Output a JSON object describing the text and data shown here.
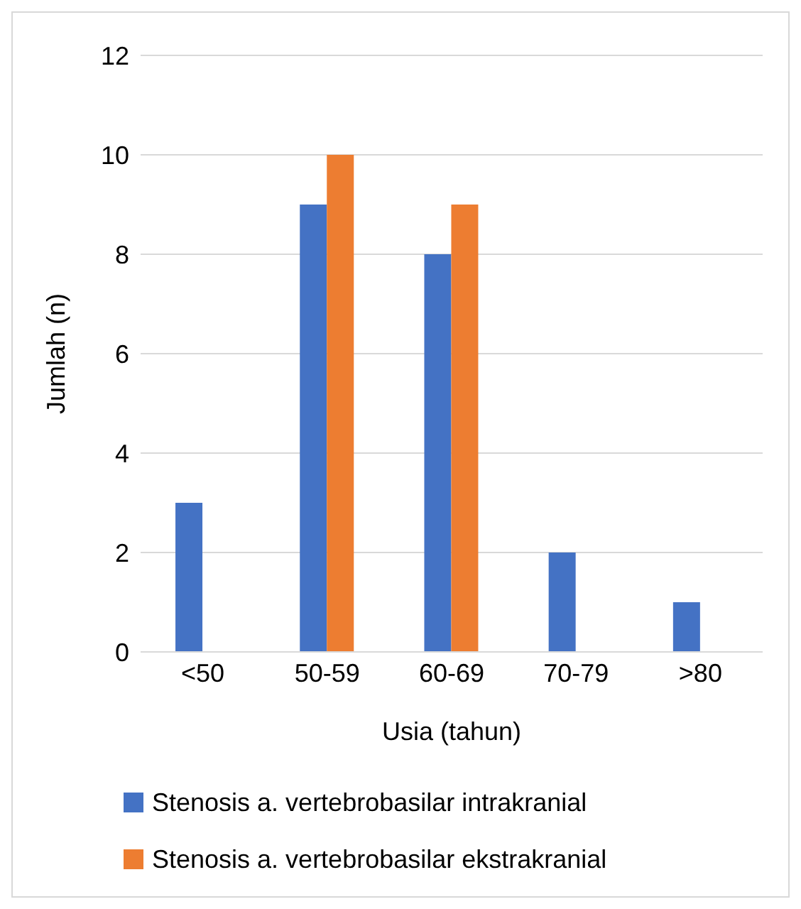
{
  "chart_data": {
    "type": "bar",
    "xlabel": "Usia (tahun)",
    "ylabel": "Jumlah (n)",
    "categories": [
      "<50",
      "50-59",
      "60-69",
      "70-79",
      ">80"
    ],
    "series": [
      {
        "name": "Stenosis a. vertebrobasilar intrakranial",
        "color": "#4472c4",
        "values": [
          3,
          9,
          8,
          2,
          1
        ]
      },
      {
        "name": "Stenosis a. vertebrobasilar ekstrakranial",
        "color": "#ed7d31",
        "values": [
          0,
          10,
          9,
          0,
          0
        ]
      }
    ],
    "ylim": [
      0,
      12
    ],
    "yticks": [
      0,
      2,
      4,
      6,
      8,
      10,
      12
    ],
    "grid": "y",
    "legend": "bottom"
  }
}
